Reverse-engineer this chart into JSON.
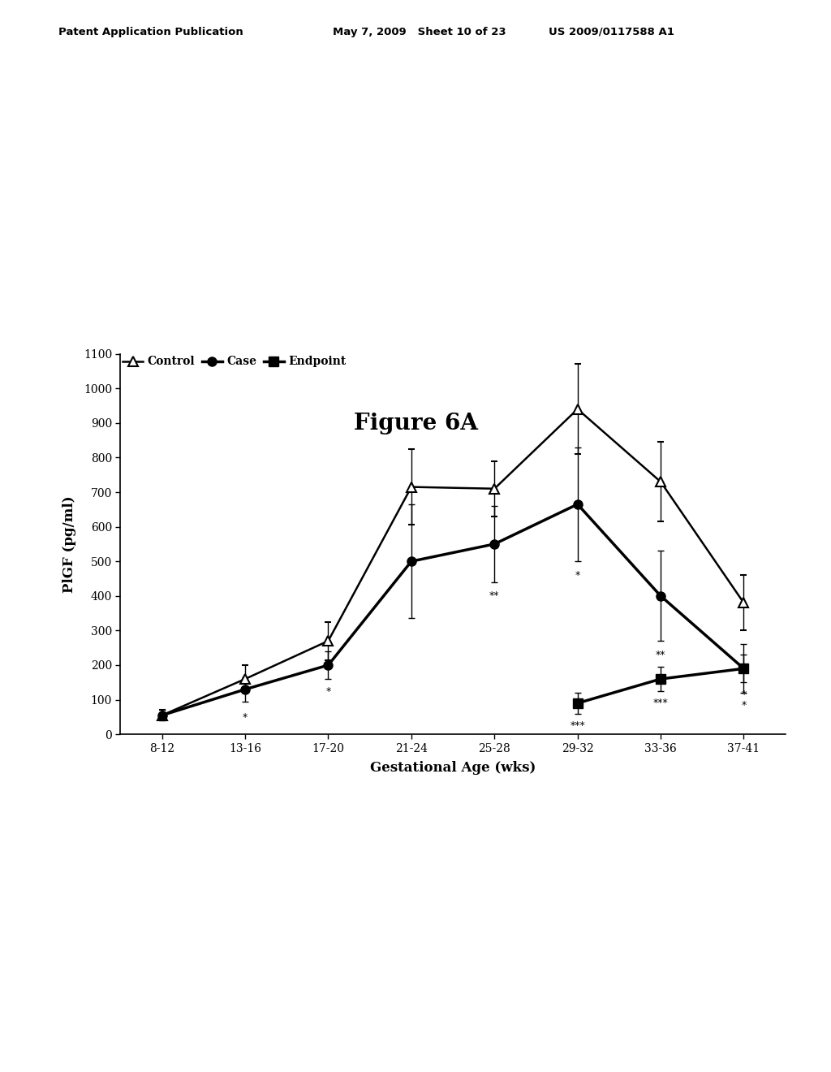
{
  "title_figure": "Figure 6A",
  "header_left": "Patent Application Publication",
  "header_mid": "May 7, 2009   Sheet 10 of 23",
  "header_right": "US 2009/0117588 A1",
  "xlabel": "Gestational Age (wks)",
  "ylabel": "PlGF (pg/ml)",
  "categories": [
    "8-12",
    "13-16",
    "17-20",
    "21-24",
    "25-28",
    "29-32",
    "33-36",
    "37-41"
  ],
  "control_y": [
    55,
    160,
    270,
    715,
    710,
    940,
    730,
    380
  ],
  "control_yerr": [
    15,
    40,
    55,
    110,
    80,
    130,
    115,
    80
  ],
  "case_y": [
    55,
    130,
    200,
    500,
    550,
    665,
    400,
    190
  ],
  "case_yerr": [
    15,
    35,
    40,
    165,
    110,
    165,
    130,
    70
  ],
  "endpoint_y": [
    null,
    null,
    null,
    null,
    null,
    90,
    160,
    190
  ],
  "endpoint_yerr": [
    null,
    null,
    null,
    null,
    null,
    30,
    35,
    40
  ],
  "ylim": [
    0,
    1100
  ],
  "yticks": [
    0,
    100,
    200,
    300,
    400,
    500,
    600,
    700,
    800,
    900,
    1000,
    1100
  ],
  "legend_labels": [
    "Control",
    "Case",
    "Endpoint"
  ],
  "background_color": "#ffffff"
}
